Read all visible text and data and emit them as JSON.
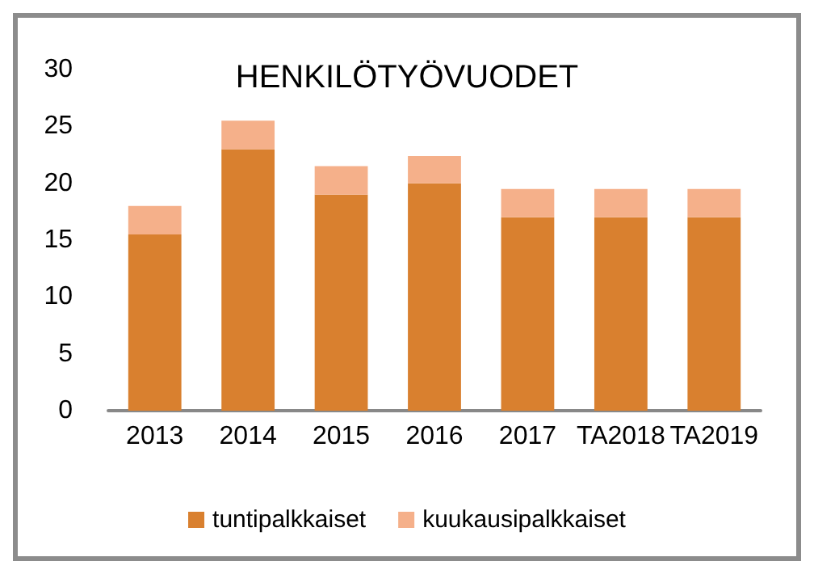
{
  "chart_data": {
    "type": "bar",
    "title": "HENKILÖTYÖVUODET",
    "stacked": true,
    "categories": [
      "2013",
      "2014",
      "2015",
      "2016",
      "2017",
      "TA2018",
      "TA2019"
    ],
    "series": [
      {
        "name": "tuntipalkkaiset",
        "color": "#d9802f",
        "values": [
          15.5,
          23,
          19,
          20,
          17,
          17,
          17
        ]
      },
      {
        "name": "kuukausipalkkaiset",
        "color": "#f5b08a",
        "values": [
          2.5,
          2.5,
          2.5,
          2.4,
          2.5,
          2.5,
          2.5
        ]
      }
    ],
    "ylim": [
      0,
      30
    ],
    "yticks": [
      0,
      5,
      10,
      15,
      20,
      25,
      30
    ],
    "grid": false,
    "legend": "bottom"
  }
}
